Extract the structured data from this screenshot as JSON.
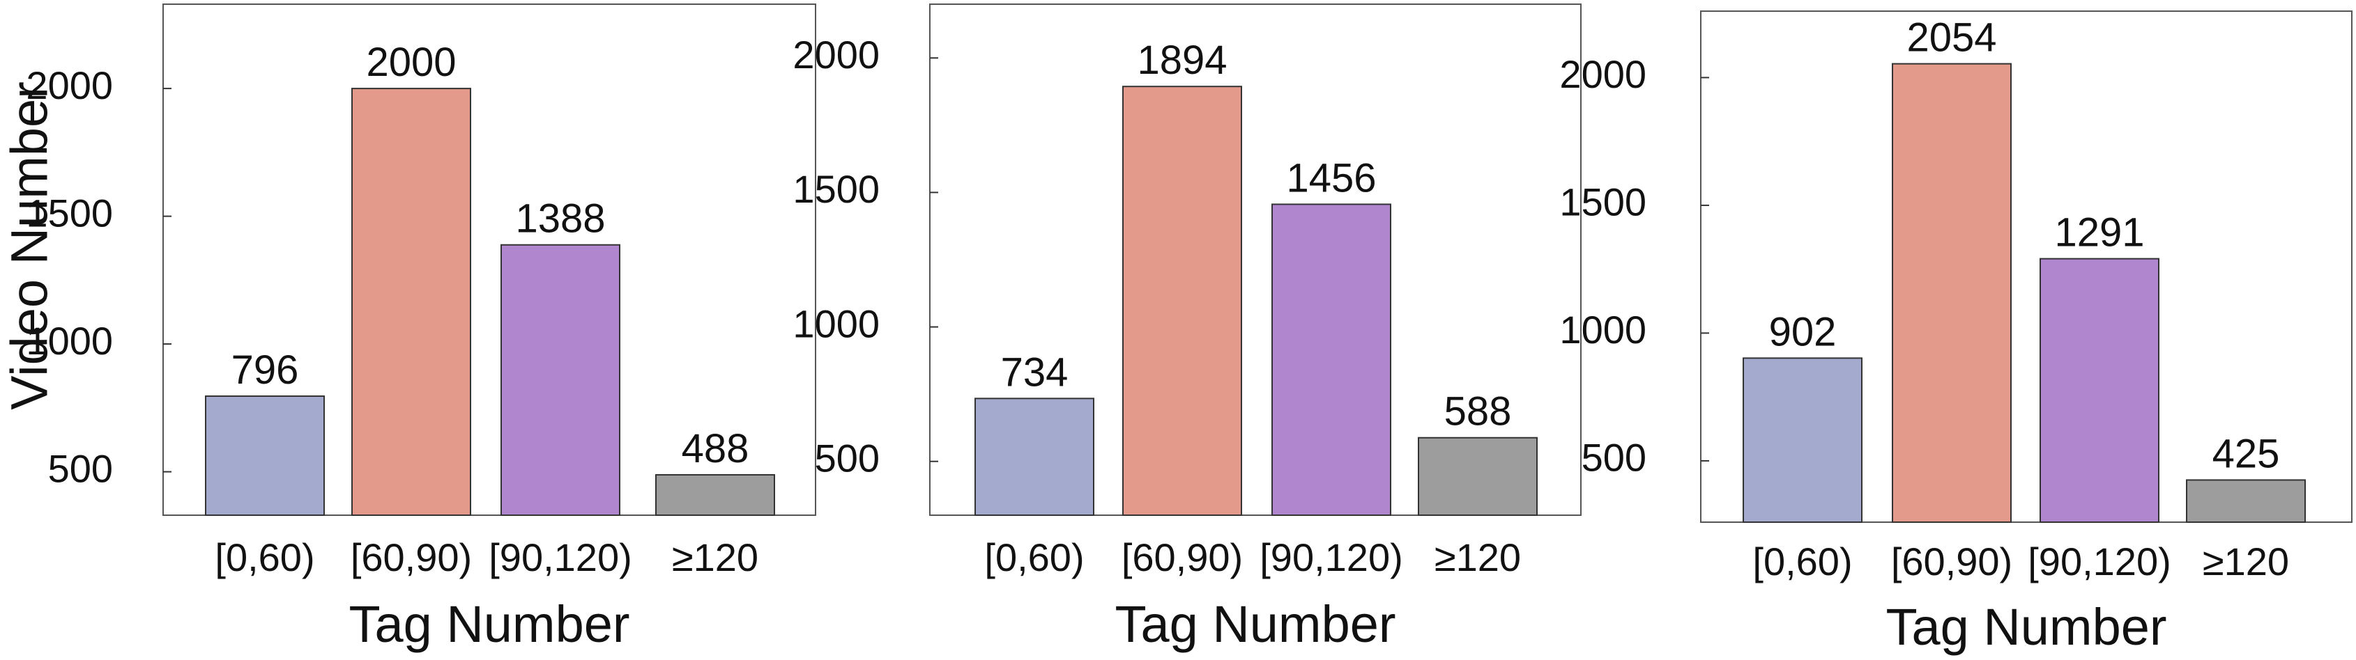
{
  "chart_data": [
    {
      "type": "bar",
      "categories": [
        "[0,60)",
        "[60,90)",
        "[90,120)",
        "≥120"
      ],
      "values": [
        796,
        2000,
        1388,
        488
      ],
      "xlabel": "Tag Number",
      "ylabel": "Video Number",
      "ylim": [
        330,
        2330
      ],
      "yticks": [
        500,
        1000,
        1500,
        2000
      ],
      "colors": [
        "#a3aacd",
        "#e39a8b",
        "#b086cf",
        "#9d9d9d"
      ]
    },
    {
      "type": "bar",
      "categories": [
        "[0,60)",
        "[60,90)",
        "[90,120)",
        "≥120"
      ],
      "values": [
        734,
        1894,
        1456,
        588
      ],
      "xlabel": "Tag Number",
      "ylabel": "",
      "ylim": [
        300,
        2200
      ],
      "yticks": [
        500,
        1000,
        1500,
        2000
      ],
      "colors": [
        "#a3aacd",
        "#e39a8b",
        "#b086cf",
        "#9d9d9d"
      ]
    },
    {
      "type": "bar",
      "categories": [
        "[0,60)",
        "[60,90)",
        "[90,120)",
        "≥120"
      ],
      "values": [
        902,
        2054,
        1291,
        425
      ],
      "xlabel": "Tag Number",
      "ylabel": "",
      "ylim": [
        260,
        2260
      ],
      "yticks": [
        500,
        1000,
        1500,
        2000
      ],
      "colors": [
        "#a3aacd",
        "#e39a8b",
        "#b086cf",
        "#9d9d9d"
      ]
    }
  ]
}
